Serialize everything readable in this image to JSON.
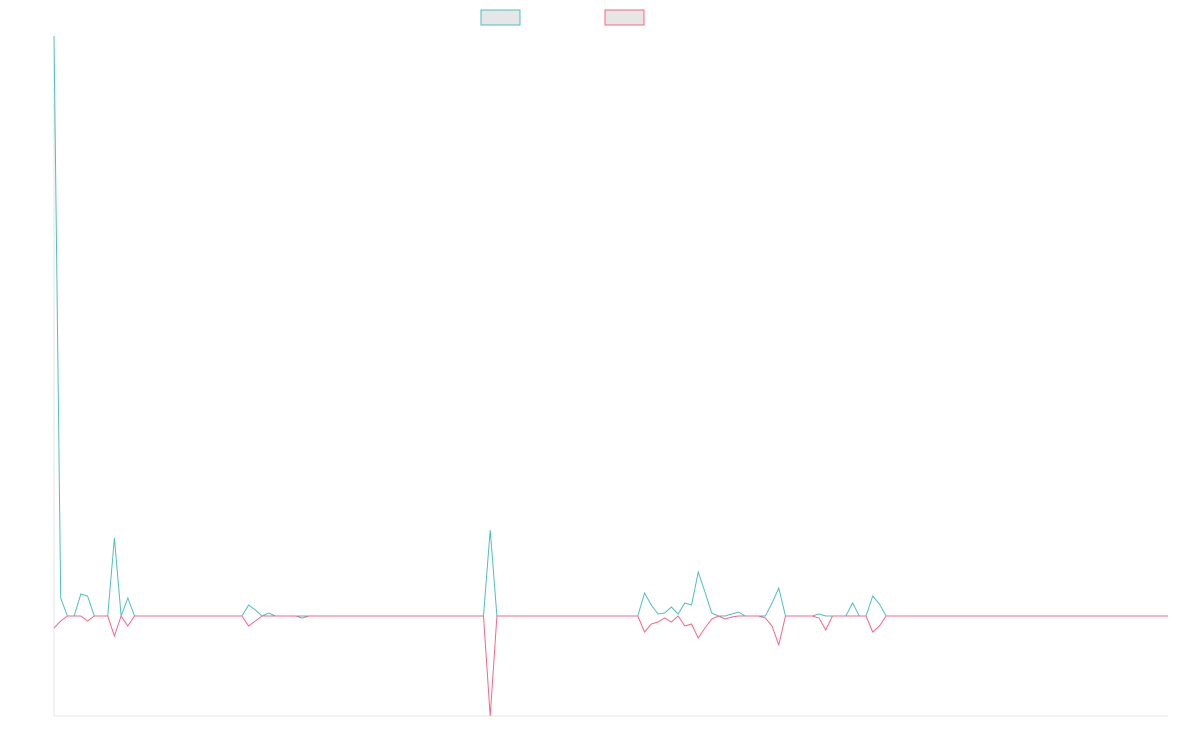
{
  "chart_data": {
    "type": "line",
    "ylim": [
      -100,
      580
    ],
    "series": [
      {
        "color": "#4bc0c0",
        "values": [
          580,
          18,
          0,
          0,
          22,
          20,
          0,
          0,
          0,
          78,
          0,
          18,
          0,
          0,
          0,
          0,
          0,
          0,
          0,
          0,
          0,
          0,
          0,
          0,
          0,
          0,
          0,
          0,
          0,
          11,
          6,
          0,
          3,
          0,
          0,
          0,
          0,
          0,
          0,
          0,
          0,
          0,
          0,
          0,
          0,
          0,
          0,
          0,
          0,
          0,
          0,
          0,
          0,
          0,
          0,
          0,
          0,
          0,
          0,
          0,
          0,
          0,
          0,
          0,
          0,
          86,
          0,
          0,
          0,
          0,
          0,
          0,
          0,
          0,
          0,
          0,
          0,
          0,
          0,
          0,
          0,
          0,
          0,
          0,
          0,
          0,
          0,
          0,
          23,
          11,
          2,
          3,
          9,
          2,
          13,
          11,
          44,
          24,
          3,
          0,
          0,
          2,
          4,
          0,
          0,
          0,
          0,
          13,
          28,
          0,
          0,
          0,
          0,
          0,
          2,
          0,
          0,
          0,
          0,
          13,
          0,
          0,
          20,
          12,
          0,
          0,
          0,
          0,
          0,
          0,
          0,
          0,
          0,
          0,
          0,
          0,
          0,
          0,
          0,
          0,
          0,
          0,
          0,
          0,
          0,
          0,
          0,
          0,
          0,
          0,
          0,
          0,
          0,
          0,
          0,
          0,
          0,
          0,
          0,
          0,
          0,
          0,
          0,
          0,
          0,
          0,
          0
        ]
      },
      {
        "color": "#ff6384",
        "values": [
          -12,
          -5,
          0,
          0,
          0,
          -5,
          0,
          0,
          0,
          -20,
          0,
          -10,
          0,
          0,
          0,
          0,
          0,
          0,
          0,
          0,
          0,
          0,
          0,
          0,
          0,
          0,
          0,
          0,
          0,
          -10,
          -5,
          0,
          0,
          0,
          0,
          0,
          0,
          -2,
          0,
          0,
          0,
          0,
          0,
          0,
          0,
          0,
          0,
          0,
          0,
          0,
          0,
          0,
          0,
          0,
          0,
          0,
          0,
          0,
          0,
          0,
          0,
          0,
          0,
          0,
          0,
          -100,
          0,
          0,
          0,
          0,
          0,
          0,
          0,
          0,
          0,
          0,
          0,
          0,
          0,
          0,
          0,
          0,
          0,
          0,
          0,
          0,
          0,
          0,
          -16,
          -8,
          -6,
          -2,
          -6,
          0,
          -10,
          -8,
          -22,
          -12,
          -3,
          0,
          -3,
          -1,
          0,
          0,
          0,
          0,
          -2,
          -10,
          -29,
          0,
          0,
          0,
          0,
          0,
          -2,
          -14,
          0,
          0,
          0,
          0,
          0,
          0,
          -16,
          -10,
          0,
          0,
          0,
          0,
          0,
          0,
          0,
          0,
          0,
          0,
          0,
          0,
          0,
          0,
          0,
          0,
          0,
          0,
          0,
          0,
          0,
          0,
          0,
          0,
          0,
          0,
          0,
          0,
          0,
          0,
          0,
          0,
          0,
          0,
          0,
          0,
          0,
          0,
          0,
          0,
          0,
          0,
          0
        ]
      }
    ]
  }
}
